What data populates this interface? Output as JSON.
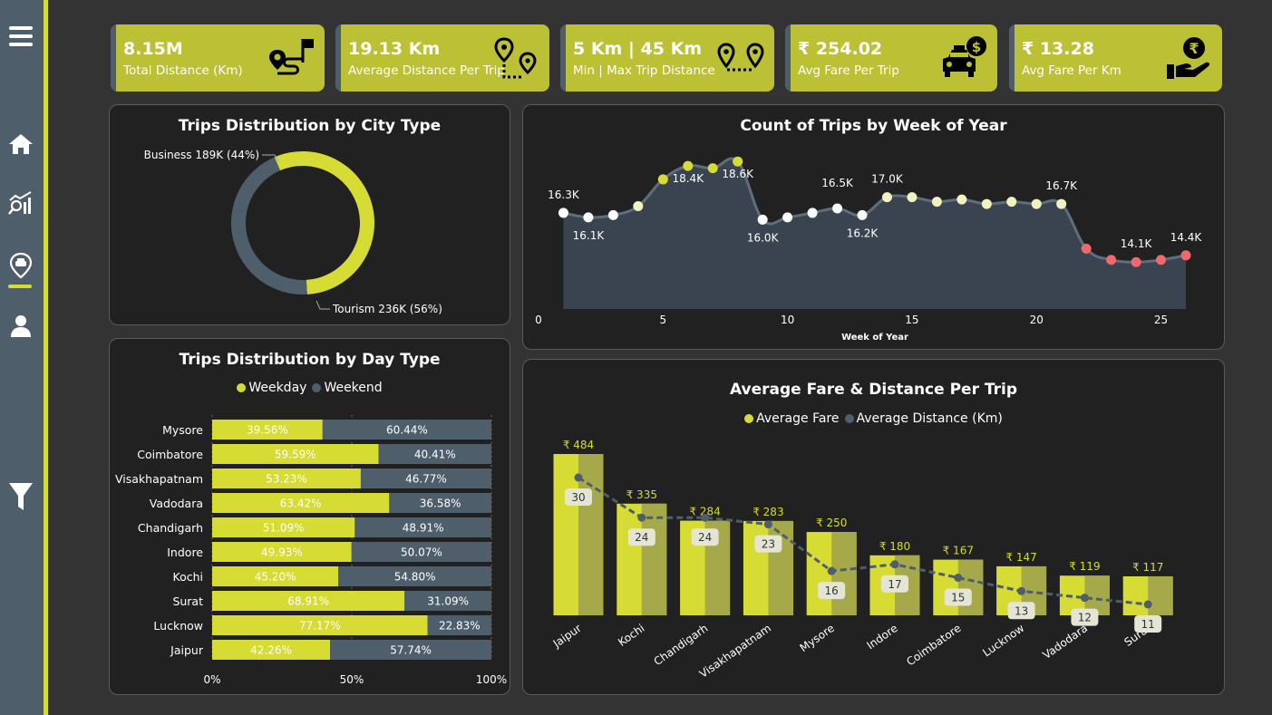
{
  "kpis": [
    {
      "value": "8.15M",
      "label": "Total Distance (Km)",
      "icon": "route-flag-icon"
    },
    {
      "value": "19.13 Km",
      "label": "Average Distance Per Trip",
      "icon": "two-pins-route-icon"
    },
    {
      "value": "5 Km | 45 Km",
      "label": "Min | Max Trip Distance",
      "icon": "pin-to-pin-icon"
    },
    {
      "value": "₹ 254.02",
      "label": "Avg Fare Per Trip",
      "icon": "taxi-fare-icon"
    },
    {
      "value": "₹ 13.28",
      "label": "Avg Fare Per Km",
      "icon": "rupee-hand-icon"
    }
  ],
  "sidebar": {
    "items": [
      {
        "name": "menu-icon"
      },
      {
        "name": "home-icon"
      },
      {
        "name": "analytics-icon"
      },
      {
        "name": "taxi-pin-icon",
        "active": true
      },
      {
        "name": "user-icon"
      },
      {
        "name": "filter-icon"
      }
    ]
  },
  "colors": {
    "accent": "#d6dc34",
    "slate": "#4e5f6b",
    "card_bg": "#212121",
    "page_bg": "#333333",
    "low_dot": "#f0686a",
    "mid_dot": "#f2f2c0"
  },
  "chart_data": [
    {
      "type": "pie",
      "variant": "donut",
      "title": "Trips Distribution by City Type",
      "slices": [
        {
          "label": "Business 189K (44%)",
          "name": "Business",
          "value": 189,
          "percent": 44,
          "color": "#4e5f6b"
        },
        {
          "label": "Tourism 236K (56%)",
          "name": "Tourism",
          "value": 236,
          "percent": 56,
          "color": "#d6dc34"
        }
      ]
    },
    {
      "type": "area",
      "title": "Count of Trips by Week of Year",
      "xlabel": "Week of Year",
      "ylabel": "",
      "x_ticks": [
        "0",
        "5",
        "10",
        "15",
        "20",
        "25"
      ],
      "xlim": [
        0,
        26
      ],
      "ylim": [
        12.0,
        19.5
      ],
      "unit": "K",
      "points": [
        {
          "x": 1,
          "y": 16.3,
          "label": "16.3K",
          "color": "#ffffff"
        },
        {
          "x": 2,
          "y": 16.1,
          "label": "16.1K",
          "color": "#ffffff"
        },
        {
          "x": 3,
          "y": 16.2,
          "label": "",
          "color": "#ffffff"
        },
        {
          "x": 4,
          "y": 16.6,
          "label": "",
          "color": "#f2f2c0"
        },
        {
          "x": 5,
          "y": 17.8,
          "label": "",
          "color": "#d6dc34"
        },
        {
          "x": 6,
          "y": 18.4,
          "label": "18.4K",
          "color": "#d6dc34"
        },
        {
          "x": 7,
          "y": 18.3,
          "label": "",
          "color": "#d6dc34"
        },
        {
          "x": 8,
          "y": 18.6,
          "label": "18.6K",
          "color": "#d6dc34"
        },
        {
          "x": 9,
          "y": 16.0,
          "label": "16.0K",
          "color": "#ffffff"
        },
        {
          "x": 10,
          "y": 16.1,
          "label": "",
          "color": "#ffffff"
        },
        {
          "x": 11,
          "y": 16.3,
          "label": "",
          "color": "#ffffff"
        },
        {
          "x": 12,
          "y": 16.5,
          "label": "16.5K",
          "color": "#ffffff"
        },
        {
          "x": 13,
          "y": 16.2,
          "label": "16.2K",
          "color": "#ffffff"
        },
        {
          "x": 14,
          "y": 17.0,
          "label": "17.0K",
          "color": "#f2f2c0"
        },
        {
          "x": 15,
          "y": 17.0,
          "label": "",
          "color": "#f2f2c0"
        },
        {
          "x": 16,
          "y": 16.8,
          "label": "",
          "color": "#f2f2c0"
        },
        {
          "x": 17,
          "y": 16.9,
          "label": "",
          "color": "#f2f2c0"
        },
        {
          "x": 18,
          "y": 16.7,
          "label": "",
          "color": "#f2f2c0"
        },
        {
          "x": 19,
          "y": 16.8,
          "label": "",
          "color": "#f2f2c0"
        },
        {
          "x": 20,
          "y": 16.7,
          "label": "",
          "color": "#f2f2c0"
        },
        {
          "x": 21,
          "y": 16.7,
          "label": "16.7K",
          "color": "#f2f2c0"
        },
        {
          "x": 22,
          "y": 14.7,
          "label": "",
          "color": "#f0686a"
        },
        {
          "x": 23,
          "y": 14.2,
          "label": "",
          "color": "#f0686a"
        },
        {
          "x": 24,
          "y": 14.1,
          "label": "14.1K",
          "color": "#f0686a"
        },
        {
          "x": 25,
          "y": 14.2,
          "label": "",
          "color": "#f0686a"
        },
        {
          "x": 26,
          "y": 14.4,
          "label": "14.4K",
          "color": "#f0686a"
        }
      ]
    },
    {
      "type": "bar",
      "orientation": "horizontal",
      "stacked": "100%",
      "title": "Trips Distribution by Day Type",
      "categories": [
        "Mysore",
        "Coimbatore",
        "Visakhapatnam",
        "Vadodara",
        "Chandigarh",
        "Indore",
        "Kochi",
        "Surat",
        "Lucknow",
        "Jaipur"
      ],
      "series": [
        {
          "name": "Weekday",
          "color": "#d6dc34",
          "values": [
            39.56,
            59.59,
            53.23,
            63.42,
            51.09,
            49.93,
            45.2,
            68.91,
            77.17,
            42.26
          ],
          "labels": [
            "39.56%",
            "59.59%",
            "53.23%",
            "63.42%",
            "51.09%",
            "49.93%",
            "45.20%",
            "68.91%",
            "77.17%",
            "42.26%"
          ]
        },
        {
          "name": "Weekend",
          "color": "#4e5f6b",
          "values": [
            60.44,
            40.41,
            46.77,
            36.58,
            48.91,
            50.07,
            54.8,
            31.09,
            22.83,
            57.74
          ],
          "labels": [
            "60.44%",
            "40.41%",
            "46.77%",
            "36.58%",
            "48.91%",
            "50.07%",
            "54.80%",
            "31.09%",
            "22.83%",
            "57.74%"
          ]
        }
      ],
      "x_ticks": [
        "0%",
        "50%",
        "100%"
      ],
      "xlim": [
        0,
        100
      ]
    },
    {
      "type": "bar",
      "variant": "bar-line-combo",
      "title": "Average Fare & Distance Per Trip",
      "categories": [
        "Jaipur",
        "Kochi",
        "Chandigarh",
        "Visakhapatnam",
        "Mysore",
        "Indore",
        "Coimbatore",
        "Lucknow",
        "Vadodara",
        "Surat"
      ],
      "series": [
        {
          "name": "Average Fare",
          "kind": "bar",
          "color": "#d6dc34",
          "values": [
            484,
            335,
            284,
            283,
            250,
            180,
            167,
            147,
            119,
            117
          ],
          "labels": [
            "₹ 484",
            "₹ 335",
            "₹ 284",
            "₹ 283",
            "₹ 250",
            "₹ 180",
            "₹ 167",
            "₹ 147",
            "₹ 119",
            "₹ 117"
          ]
        },
        {
          "name": "Average Distance (Km)",
          "kind": "line",
          "color": "#4e5f6b",
          "values": [
            30,
            24,
            24,
            23,
            16,
            17,
            15,
            13,
            12,
            11
          ],
          "labels": [
            "30",
            "24",
            "24",
            "23",
            "16",
            "17",
            "15",
            "13",
            "12",
            "11"
          ]
        }
      ]
    }
  ]
}
